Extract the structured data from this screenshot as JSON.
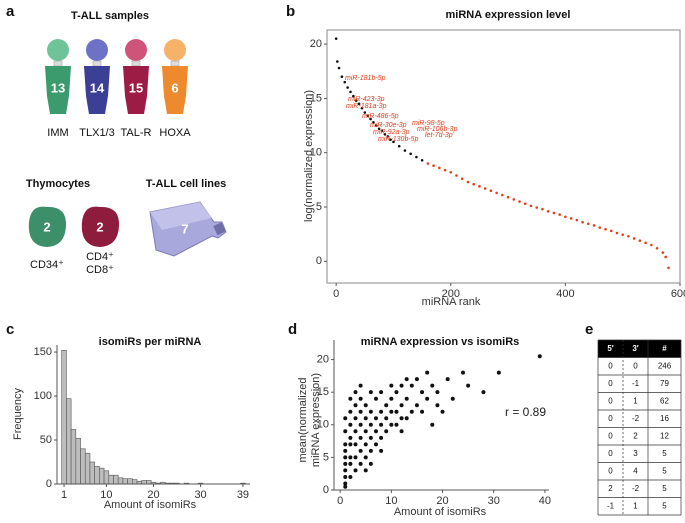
{
  "panel_labels": [
    "a",
    "b",
    "c",
    "d",
    "e"
  ],
  "panel_a": {
    "samples_title": "T-ALL samples",
    "samples": [
      {
        "count": 13,
        "label": "IMM"
      },
      {
        "count": 14,
        "label": "TLX1/3"
      },
      {
        "count": 15,
        "label": "TAL-R"
      },
      {
        "count": 6,
        "label": "HOXA"
      }
    ],
    "thymocytes_title": "Thymocytes",
    "thymocytes": [
      {
        "count": 2,
        "label": [
          "CD34⁺"
        ]
      },
      {
        "count": 2,
        "label": [
          "CD4⁺",
          "CD8⁺"
        ]
      }
    ],
    "cell_lines_title": "T-ALL cell lines",
    "cell_lines_count": 7
  },
  "chart_data": [
    {
      "type": "scatter",
      "title": "miRNA expression level",
      "x_label": "miRNA rank",
      "y_label": "log(normalized expression)",
      "xlim": [
        -16,
        600
      ],
      "xticks": [
        0,
        200,
        400,
        600
      ],
      "ylim": [
        -2,
        21.3
      ],
      "yticks": [
        0,
        5,
        10,
        15,
        20
      ],
      "series": [
        {
          "color": "#111111",
          "x": [
            0,
            2,
            5,
            10,
            15,
            20,
            25,
            30,
            35,
            40,
            45,
            50,
            55,
            60,
            65,
            70,
            75,
            80,
            85,
            90,
            95,
            100,
            110,
            120,
            130,
            140,
            150
          ],
          "values": [
            20.5,
            18.4,
            17.8,
            17.0,
            16.5,
            16.0,
            15.6,
            15.2,
            14.8,
            14.5,
            14.1,
            13.7,
            13.4,
            13.1,
            12.8,
            12.5,
            12.2,
            12.0,
            11.7,
            11.5,
            11.2,
            11.0,
            10.6,
            10.2,
            9.9,
            9.6,
            9.3
          ]
        },
        {
          "color": "#e0401a",
          "x": [
            160,
            170,
            180,
            190,
            200,
            210,
            220,
            230,
            240,
            250,
            260,
            270,
            280,
            290,
            300,
            310,
            320,
            330,
            340,
            350,
            360,
            370,
            380,
            390,
            400,
            410,
            420,
            430,
            440,
            450,
            460,
            470,
            480,
            490,
            500,
            510,
            520,
            530,
            540,
            550,
            560,
            570,
            575,
            580
          ],
          "values": [
            9.0,
            8.8,
            8.6,
            8.4,
            8.2,
            7.9,
            7.6,
            7.3,
            7.1,
            6.9,
            6.7,
            6.5,
            6.3,
            6.1,
            5.9,
            5.7,
            5.5,
            5.3,
            5.1,
            4.95,
            4.8,
            4.6,
            4.45,
            4.3,
            4.1,
            3.95,
            3.8,
            3.6,
            3.45,
            3.3,
            3.1,
            2.95,
            2.8,
            2.6,
            2.45,
            2.3,
            2.1,
            1.9,
            1.7,
            1.5,
            1.2,
            0.8,
            0.4,
            -0.6
          ]
        }
      ],
      "annotations": [
        "miR-181b-5p",
        "miR-423-3p",
        "miR-181a-3p",
        "miR-486-5p",
        "miR-30e-3p",
        "miR-92a-3p",
        "miR-130b-5p",
        "miR-98-5p",
        "miR-106b-3p",
        "let-7d-3p"
      ]
    },
    {
      "type": "histogram",
      "title": "isomiRs per miRNA",
      "x_label": "Amount of isomiRs",
      "y_label": "Frequency",
      "color": "#bdbdbd",
      "xlim": [
        -0.5,
        40.5
      ],
      "xticks": [
        1,
        10,
        20,
        30,
        39
      ],
      "ylim": [
        0,
        158
      ],
      "yticks": [
        0,
        50,
        100,
        150
      ],
      "bins": [
        0.5,
        1.5,
        2.5,
        3.5,
        4.5,
        5.5,
        6.5,
        7.5,
        8.5,
        9.5,
        10.5,
        11.5,
        12.5,
        13.5,
        14.5,
        15.5,
        16.5,
        17.5,
        18.5,
        19.5,
        20.5,
        21.5,
        22.5,
        23.5,
        24.5,
        25.5,
        26.5,
        27.5,
        28.5,
        29.5,
        30.5,
        31.5,
        32.5,
        33.5,
        34.5,
        35.5,
        36.5,
        37.5,
        38.5,
        39.5
      ],
      "values": [
        152,
        97,
        62,
        52,
        40,
        35,
        25,
        20,
        18,
        15,
        10,
        10,
        7,
        6,
        6,
        5,
        3,
        4,
        4,
        2,
        1,
        2,
        1,
        1,
        1,
        0,
        1,
        0,
        0,
        1,
        0,
        0,
        0,
        0,
        0,
        0,
        0,
        0,
        1
      ]
    },
    {
      "type": "scatter",
      "title": "miRNA expression vs isomiRs",
      "x_label": "Amount of isomiRs",
      "y_label": [
        "mean(normalized",
        "miRNA expression)"
      ],
      "xlim": [
        -1.2,
        40.8
      ],
      "xticks": [
        0,
        10,
        20,
        30,
        40
      ],
      "ylim": [
        0,
        23
      ],
      "yticks": [
        0,
        5,
        10,
        15,
        20
      ],
      "series": [
        {
          "color": "#111111",
          "x": [
            1,
            1,
            1,
            1,
            1,
            1,
            1,
            1,
            2,
            2,
            2,
            2,
            2,
            2,
            2,
            3,
            3,
            3,
            3,
            3,
            3,
            4,
            4,
            4,
            4,
            4,
            4,
            5,
            5,
            5,
            5,
            5,
            6,
            6,
            6,
            6,
            6,
            7,
            7,
            7,
            7,
            8,
            8,
            8,
            8,
            9,
            9,
            9,
            10,
            10,
            10,
            10,
            11,
            11,
            11,
            12,
            12,
            12,
            13,
            13,
            13,
            14,
            14,
            15,
            15,
            16,
            16,
            17,
            17,
            18,
            18,
            19,
            19,
            20,
            21,
            22,
            24,
            25,
            28,
            31,
            39,
            2,
            3,
            4,
            1,
            1,
            5,
            6,
            8,
            12
          ],
          "values": [
            1,
            2,
            3,
            4,
            5,
            6,
            7,
            9,
            2,
            4,
            5,
            7,
            8,
            10,
            12,
            3,
            5,
            7,
            9,
            11,
            13,
            4,
            6,
            8,
            10,
            12,
            14,
            5,
            7,
            9,
            11,
            13,
            6,
            8,
            10,
            12,
            15,
            7,
            9,
            11,
            14,
            8,
            10,
            12,
            15,
            9,
            11,
            13,
            10,
            12,
            14,
            16,
            10,
            12,
            15,
            11,
            13,
            16,
            11,
            14,
            17,
            12,
            16,
            13,
            17,
            12,
            15,
            14,
            18,
            10,
            16,
            15,
            13,
            12,
            17,
            14,
            18,
            16,
            15,
            18,
            20.5,
            14,
            15,
            16,
            11,
            0.5,
            3,
            4,
            6,
            9
          ]
        }
      ],
      "annotations": [
        "r = 0.89"
      ]
    }
  ],
  "table": {
    "header": [
      "5′",
      "3′",
      "#"
    ],
    "rows": [
      [
        0,
        0,
        246
      ],
      [
        0,
        -1,
        79
      ],
      [
        0,
        1,
        62
      ],
      [
        0,
        -2,
        16
      ],
      [
        0,
        2,
        12
      ],
      [
        0,
        3,
        5
      ],
      [
        0,
        4,
        5
      ],
      [
        2,
        -2,
        5
      ],
      [
        -1,
        1,
        5
      ]
    ]
  }
}
